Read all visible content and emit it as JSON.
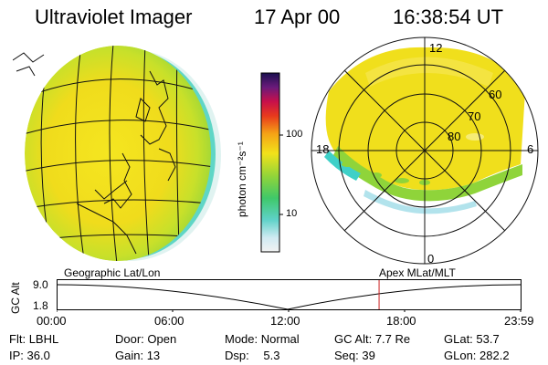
{
  "header": {
    "instrument": "Ultraviolet Imager",
    "date": "17 Apr 00",
    "time": "16:38:54 UT"
  },
  "colorbar": {
    "unit_label": "photon cm⁻²s⁻¹",
    "ticks": [
      "100",
      "10"
    ]
  },
  "polar_plot": {
    "mlt_labels": {
      "top": "12",
      "left": "18",
      "right": "6",
      "bottom": "0"
    },
    "lat_labels": [
      "60",
      "70",
      "80"
    ]
  },
  "altitude_panel": {
    "axis_title": "GC Alt",
    "y_ticks": [
      "9.0",
      "1.8"
    ],
    "left_caption": "Geographic Lat/Lon",
    "right_caption": "Apex MLat/MLT",
    "time_ticks": [
      "00:00",
      "06:00",
      "12:00",
      "18:00",
      "23:59"
    ],
    "current_time_fraction": 0.694
  },
  "status": {
    "filter_label": "Flt:",
    "filter_value": "LBHL",
    "door_label": "Door:",
    "door_value": "Open",
    "mode_label": "Mode:",
    "mode_value": "Normal",
    "gcalt_label": "GC Alt:",
    "gcalt_value": "7.7 Re",
    "glat_label": "GLat:",
    "glat_value": "53.7",
    "ip_label": "IP:",
    "ip_value": "36.0",
    "gain_label": "Gain:",
    "gain_value": "13",
    "dsp_label": "Dsp:",
    "dsp_value": "5.3",
    "seq_label": "Seq:",
    "seq_value": "39",
    "glon_label": "GLon:",
    "glon_value": "282.2"
  },
  "colors": {
    "accent_marker": "#cc2222",
    "aurora_yellow": "#f2e21a",
    "aurora_green": "#9ad63a",
    "aurora_cyan": "#3fd0c8"
  }
}
